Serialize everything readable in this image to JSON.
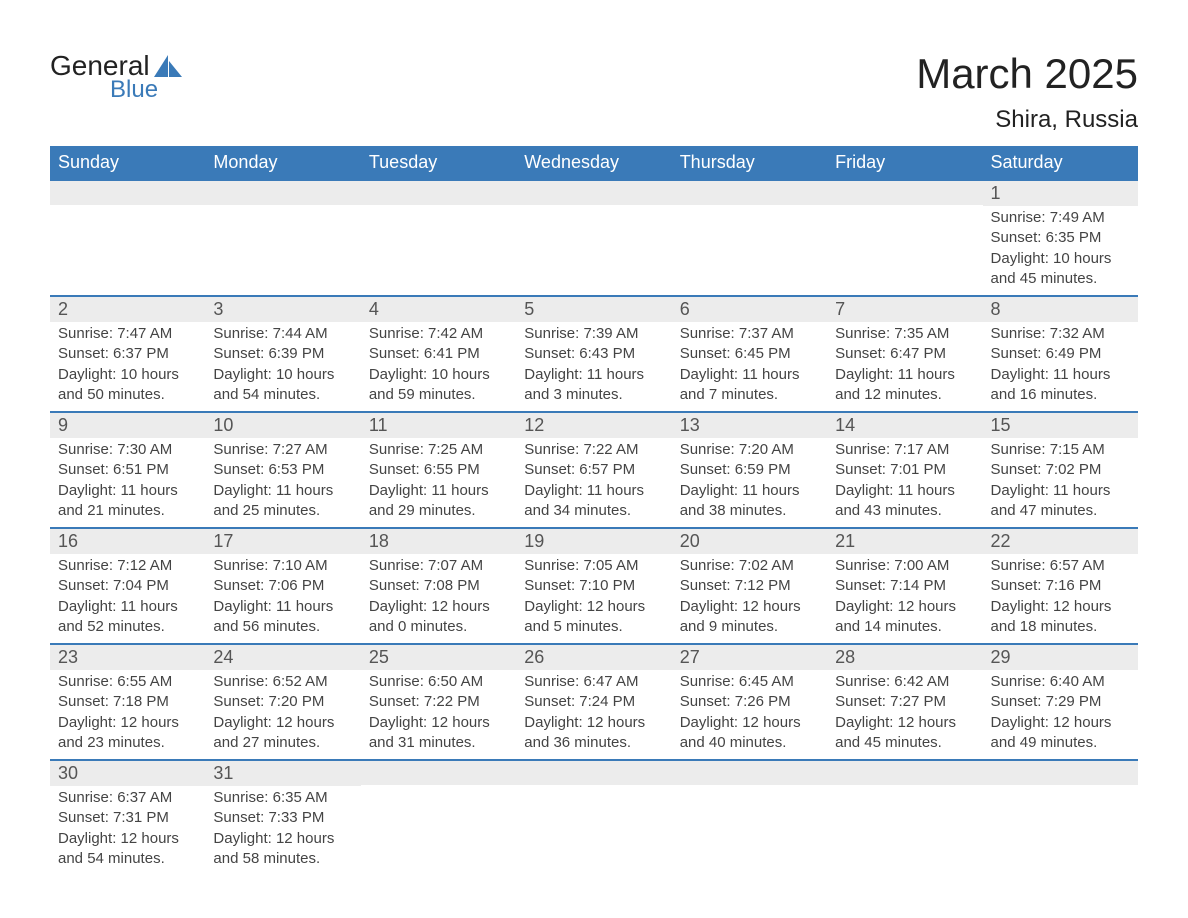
{
  "brand": {
    "text1": "General",
    "text2": "Blue",
    "icon_color": "#3a7ab8"
  },
  "title": "March 2025",
  "location": "Shira, Russia",
  "colors": {
    "header_bg": "#3a7ab8",
    "header_text": "#ffffff",
    "daynum_bg": "#ececec",
    "border": "#3a7ab8",
    "body_text": "#444444"
  },
  "font": {
    "family": "Arial",
    "title_size": 42,
    "location_size": 24,
    "header_size": 18,
    "daynum_size": 18,
    "body_size": 15
  },
  "day_headers": [
    "Sunday",
    "Monday",
    "Tuesday",
    "Wednesday",
    "Thursday",
    "Friday",
    "Saturday"
  ],
  "weeks": [
    [
      {
        "num": "",
        "sunrise": "",
        "sunset": "",
        "daylight": ""
      },
      {
        "num": "",
        "sunrise": "",
        "sunset": "",
        "daylight": ""
      },
      {
        "num": "",
        "sunrise": "",
        "sunset": "",
        "daylight": ""
      },
      {
        "num": "",
        "sunrise": "",
        "sunset": "",
        "daylight": ""
      },
      {
        "num": "",
        "sunrise": "",
        "sunset": "",
        "daylight": ""
      },
      {
        "num": "",
        "sunrise": "",
        "sunset": "",
        "daylight": ""
      },
      {
        "num": "1",
        "sunrise": "Sunrise: 7:49 AM",
        "sunset": "Sunset: 6:35 PM",
        "daylight": "Daylight: 10 hours and 45 minutes."
      }
    ],
    [
      {
        "num": "2",
        "sunrise": "Sunrise: 7:47 AM",
        "sunset": "Sunset: 6:37 PM",
        "daylight": "Daylight: 10 hours and 50 minutes."
      },
      {
        "num": "3",
        "sunrise": "Sunrise: 7:44 AM",
        "sunset": "Sunset: 6:39 PM",
        "daylight": "Daylight: 10 hours and 54 minutes."
      },
      {
        "num": "4",
        "sunrise": "Sunrise: 7:42 AM",
        "sunset": "Sunset: 6:41 PM",
        "daylight": "Daylight: 10 hours and 59 minutes."
      },
      {
        "num": "5",
        "sunrise": "Sunrise: 7:39 AM",
        "sunset": "Sunset: 6:43 PM",
        "daylight": "Daylight: 11 hours and 3 minutes."
      },
      {
        "num": "6",
        "sunrise": "Sunrise: 7:37 AM",
        "sunset": "Sunset: 6:45 PM",
        "daylight": "Daylight: 11 hours and 7 minutes."
      },
      {
        "num": "7",
        "sunrise": "Sunrise: 7:35 AM",
        "sunset": "Sunset: 6:47 PM",
        "daylight": "Daylight: 11 hours and 12 minutes."
      },
      {
        "num": "8",
        "sunrise": "Sunrise: 7:32 AM",
        "sunset": "Sunset: 6:49 PM",
        "daylight": "Daylight: 11 hours and 16 minutes."
      }
    ],
    [
      {
        "num": "9",
        "sunrise": "Sunrise: 7:30 AM",
        "sunset": "Sunset: 6:51 PM",
        "daylight": "Daylight: 11 hours and 21 minutes."
      },
      {
        "num": "10",
        "sunrise": "Sunrise: 7:27 AM",
        "sunset": "Sunset: 6:53 PM",
        "daylight": "Daylight: 11 hours and 25 minutes."
      },
      {
        "num": "11",
        "sunrise": "Sunrise: 7:25 AM",
        "sunset": "Sunset: 6:55 PM",
        "daylight": "Daylight: 11 hours and 29 minutes."
      },
      {
        "num": "12",
        "sunrise": "Sunrise: 7:22 AM",
        "sunset": "Sunset: 6:57 PM",
        "daylight": "Daylight: 11 hours and 34 minutes."
      },
      {
        "num": "13",
        "sunrise": "Sunrise: 7:20 AM",
        "sunset": "Sunset: 6:59 PM",
        "daylight": "Daylight: 11 hours and 38 minutes."
      },
      {
        "num": "14",
        "sunrise": "Sunrise: 7:17 AM",
        "sunset": "Sunset: 7:01 PM",
        "daylight": "Daylight: 11 hours and 43 minutes."
      },
      {
        "num": "15",
        "sunrise": "Sunrise: 7:15 AM",
        "sunset": "Sunset: 7:02 PM",
        "daylight": "Daylight: 11 hours and 47 minutes."
      }
    ],
    [
      {
        "num": "16",
        "sunrise": "Sunrise: 7:12 AM",
        "sunset": "Sunset: 7:04 PM",
        "daylight": "Daylight: 11 hours and 52 minutes."
      },
      {
        "num": "17",
        "sunrise": "Sunrise: 7:10 AM",
        "sunset": "Sunset: 7:06 PM",
        "daylight": "Daylight: 11 hours and 56 minutes."
      },
      {
        "num": "18",
        "sunrise": "Sunrise: 7:07 AM",
        "sunset": "Sunset: 7:08 PM",
        "daylight": "Daylight: 12 hours and 0 minutes."
      },
      {
        "num": "19",
        "sunrise": "Sunrise: 7:05 AM",
        "sunset": "Sunset: 7:10 PM",
        "daylight": "Daylight: 12 hours and 5 minutes."
      },
      {
        "num": "20",
        "sunrise": "Sunrise: 7:02 AM",
        "sunset": "Sunset: 7:12 PM",
        "daylight": "Daylight: 12 hours and 9 minutes."
      },
      {
        "num": "21",
        "sunrise": "Sunrise: 7:00 AM",
        "sunset": "Sunset: 7:14 PM",
        "daylight": "Daylight: 12 hours and 14 minutes."
      },
      {
        "num": "22",
        "sunrise": "Sunrise: 6:57 AM",
        "sunset": "Sunset: 7:16 PM",
        "daylight": "Daylight: 12 hours and 18 minutes."
      }
    ],
    [
      {
        "num": "23",
        "sunrise": "Sunrise: 6:55 AM",
        "sunset": "Sunset: 7:18 PM",
        "daylight": "Daylight: 12 hours and 23 minutes."
      },
      {
        "num": "24",
        "sunrise": "Sunrise: 6:52 AM",
        "sunset": "Sunset: 7:20 PM",
        "daylight": "Daylight: 12 hours and 27 minutes."
      },
      {
        "num": "25",
        "sunrise": "Sunrise: 6:50 AM",
        "sunset": "Sunset: 7:22 PM",
        "daylight": "Daylight: 12 hours and 31 minutes."
      },
      {
        "num": "26",
        "sunrise": "Sunrise: 6:47 AM",
        "sunset": "Sunset: 7:24 PM",
        "daylight": "Daylight: 12 hours and 36 minutes."
      },
      {
        "num": "27",
        "sunrise": "Sunrise: 6:45 AM",
        "sunset": "Sunset: 7:26 PM",
        "daylight": "Daylight: 12 hours and 40 minutes."
      },
      {
        "num": "28",
        "sunrise": "Sunrise: 6:42 AM",
        "sunset": "Sunset: 7:27 PM",
        "daylight": "Daylight: 12 hours and 45 minutes."
      },
      {
        "num": "29",
        "sunrise": "Sunrise: 6:40 AM",
        "sunset": "Sunset: 7:29 PM",
        "daylight": "Daylight: 12 hours and 49 minutes."
      }
    ],
    [
      {
        "num": "30",
        "sunrise": "Sunrise: 6:37 AM",
        "sunset": "Sunset: 7:31 PM",
        "daylight": "Daylight: 12 hours and 54 minutes."
      },
      {
        "num": "31",
        "sunrise": "Sunrise: 6:35 AM",
        "sunset": "Sunset: 7:33 PM",
        "daylight": "Daylight: 12 hours and 58 minutes."
      },
      {
        "num": "",
        "sunrise": "",
        "sunset": "",
        "daylight": ""
      },
      {
        "num": "",
        "sunrise": "",
        "sunset": "",
        "daylight": ""
      },
      {
        "num": "",
        "sunrise": "",
        "sunset": "",
        "daylight": ""
      },
      {
        "num": "",
        "sunrise": "",
        "sunset": "",
        "daylight": ""
      },
      {
        "num": "",
        "sunrise": "",
        "sunset": "",
        "daylight": ""
      }
    ]
  ]
}
